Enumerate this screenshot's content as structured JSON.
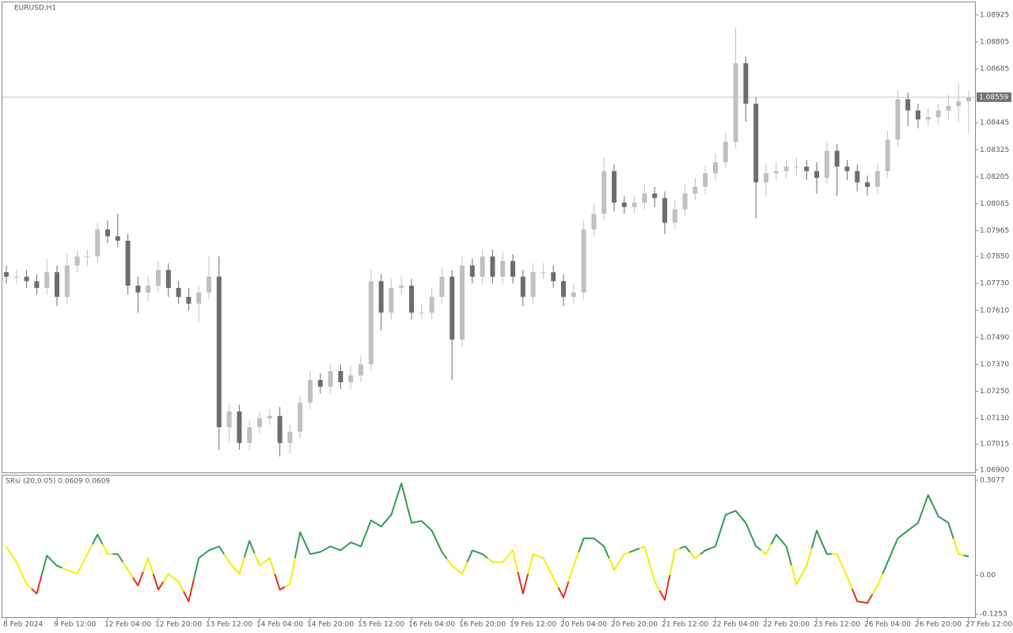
{
  "chart_data": [
    {
      "type": "candlestick",
      "title": "EURUSD,H1",
      "categories": [
        "8 Feb 2024",
        null,
        null,
        null,
        null,
        "9 Feb 12:00",
        null,
        null,
        null,
        null,
        "12 Feb 04:00",
        null,
        null,
        null,
        null,
        "12 Feb 20:00",
        null,
        null,
        null,
        null,
        "13 Feb 12:00",
        null,
        null,
        null,
        null,
        "14 Feb 04:00",
        null,
        null,
        null,
        null,
        "14 Feb 20:00",
        null,
        null,
        null,
        null,
        "15 Feb 12:00",
        null,
        null,
        null,
        null,
        "16 Feb 04:00",
        null,
        null,
        null,
        null,
        "16 Feb 20:00",
        null,
        null,
        null,
        null,
        "19 Feb 12:00",
        null,
        null,
        null,
        null,
        "20 Feb 04:00",
        null,
        null,
        null,
        null,
        "20 Feb 20:00",
        null,
        null,
        null,
        null,
        "21 Feb 12:00",
        null,
        null,
        null,
        null,
        "22 Feb 04:00",
        null,
        null,
        null,
        null,
        "22 Feb 20:00",
        null,
        null,
        null,
        null,
        "23 Feb 12:00",
        null,
        null,
        null,
        null,
        "26 Feb 04:00",
        null,
        null,
        null,
        null,
        "26 Feb 20:00",
        null,
        null,
        null,
        null,
        "27 Feb 12:00"
      ],
      "open": [
        1.0778,
        1.0776,
        1.0776,
        1.0774,
        1.0771,
        1.0778,
        1.0767,
        1.0781,
        1.0785,
        1.0785,
        1.0797,
        1.0794,
        1.0792,
        1.0772,
        1.0769,
        1.0772,
        1.0779,
        1.0771,
        1.0767,
        1.0764,
        1.0769,
        1.0776,
        1.0709,
        1.0716,
        1.0702,
        1.0709,
        1.0713,
        1.0714,
        1.0702,
        1.0707,
        1.072,
        1.073,
        1.0727,
        1.0734,
        1.0729,
        1.0732,
        1.0737,
        1.0774,
        1.076,
        1.0771,
        1.0772,
        1.076,
        1.076,
        1.0767,
        1.0776,
        1.0748,
        1.0781,
        1.0776,
        1.0785,
        1.0776,
        1.0783,
        1.0776,
        1.0767,
        1.0778,
        1.0778,
        1.0774,
        1.0767,
        1.0769,
        1.0797,
        1.0804,
        1.0823,
        1.0809,
        1.0807,
        1.0809,
        1.0813,
        1.0811,
        1.08,
        1.0806,
        1.0813,
        1.0816,
        1.0822,
        1.0827,
        1.0836,
        1.0871,
        1.0853,
        1.0818,
        1.0822,
        1.0823,
        1.0825,
        1.0825,
        1.0823,
        1.082,
        1.0832,
        1.0825,
        1.0823,
        1.0818,
        1.0816,
        1.0823,
        1.0837,
        1.0855,
        1.085,
        1.0846,
        1.0847,
        1.085,
        1.0852,
        1.0854
      ],
      "high": [
        1.0781,
        1.0779,
        1.0779,
        1.0777,
        1.0784,
        1.0781,
        1.0786,
        1.0788,
        1.0788,
        1.08,
        1.0801,
        1.0804,
        1.0795,
        1.0776,
        1.0776,
        1.0783,
        1.0782,
        1.0774,
        1.0771,
        1.0772,
        1.0785,
        1.0785,
        1.0719,
        1.0719,
        1.0712,
        1.0716,
        1.0717,
        1.0718,
        1.071,
        1.0723,
        1.0734,
        1.0733,
        1.0737,
        1.0737,
        1.0736,
        1.0741,
        1.0779,
        1.0777,
        1.0775,
        1.0776,
        1.0775,
        1.0764,
        1.0771,
        1.078,
        1.0779,
        1.0785,
        1.0784,
        1.0788,
        1.0788,
        1.0787,
        1.0786,
        1.0779,
        1.0782,
        1.0782,
        1.0781,
        1.0777,
        1.0773,
        1.0801,
        1.0808,
        1.0829,
        1.0826,
        1.0812,
        1.0812,
        1.0817,
        1.0816,
        1.0814,
        1.081,
        1.0817,
        1.082,
        1.0825,
        1.0831,
        1.084,
        1.0887,
        1.0874,
        1.0856,
        1.0826,
        1.0827,
        1.0828,
        1.0829,
        1.0828,
        1.0827,
        1.0836,
        1.0835,
        1.0828,
        1.0826,
        1.0821,
        1.0826,
        1.0841,
        1.0859,
        1.0858,
        1.0853,
        1.0851,
        1.0853,
        1.0857,
        1.0862,
        1.0859
      ],
      "low": [
        1.0773,
        1.0773,
        1.0771,
        1.0768,
        1.0768,
        1.0763,
        1.0764,
        1.0778,
        1.0781,
        1.0782,
        1.0791,
        1.0789,
        1.0768,
        1.076,
        1.0765,
        1.0769,
        1.0767,
        1.0764,
        1.0761,
        1.0756,
        1.0766,
        1.0699,
        1.0702,
        1.0699,
        1.0699,
        1.0706,
        1.071,
        1.0696,
        1.0697,
        1.0704,
        1.0717,
        1.0724,
        1.0724,
        1.0726,
        1.0726,
        1.0729,
        1.0734,
        1.0752,
        1.0757,
        1.0768,
        1.0757,
        1.0757,
        1.0757,
        1.0764,
        1.073,
        1.0745,
        1.0773,
        1.0773,
        1.0773,
        1.0773,
        1.0773,
        1.0763,
        1.0764,
        1.0775,
        1.0771,
        1.0763,
        1.0764,
        1.0766,
        1.0794,
        1.0801,
        1.0805,
        1.0804,
        1.0804,
        1.0806,
        1.0807,
        1.0795,
        1.0797,
        1.0803,
        1.081,
        1.0813,
        1.0819,
        1.0824,
        1.0833,
        1.0845,
        1.0802,
        1.0812,
        1.0819,
        1.082,
        1.0821,
        1.0819,
        1.0813,
        1.0817,
        1.0812,
        1.0819,
        1.0814,
        1.0812,
        1.0813,
        1.082,
        1.0834,
        1.0843,
        1.0842,
        1.0843,
        1.0844,
        1.0846,
        1.0845,
        1.084
      ],
      "close": [
        1.0776,
        1.0776,
        1.0774,
        1.0771,
        1.0778,
        1.0767,
        1.0781,
        1.0785,
        1.0785,
        1.0797,
        1.0794,
        1.0792,
        1.0772,
        1.0769,
        1.0772,
        1.0779,
        1.0771,
        1.0767,
        1.0764,
        1.0769,
        1.0776,
        1.0709,
        1.0716,
        1.0702,
        1.0709,
        1.0713,
        1.0714,
        1.0702,
        1.0707,
        1.072,
        1.073,
        1.0727,
        1.0734,
        1.0729,
        1.0732,
        1.0737,
        1.0774,
        1.076,
        1.0771,
        1.0772,
        1.076,
        1.076,
        1.0767,
        1.0776,
        1.0748,
        1.0781,
        1.0776,
        1.0785,
        1.0776,
        1.0783,
        1.0776,
        1.0767,
        1.0778,
        1.0778,
        1.0774,
        1.0767,
        1.0769,
        1.0797,
        1.0804,
        1.0823,
        1.0809,
        1.0807,
        1.0809,
        1.0813,
        1.0811,
        1.08,
        1.0806,
        1.0813,
        1.0816,
        1.0822,
        1.0827,
        1.0836,
        1.0871,
        1.0853,
        1.0818,
        1.0822,
        1.0823,
        1.0825,
        1.0825,
        1.0823,
        1.082,
        1.0832,
        1.0825,
        1.0823,
        1.0818,
        1.0816,
        1.0823,
        1.0837,
        1.0855,
        1.085,
        1.0846,
        1.0847,
        1.085,
        1.0852,
        1.0854,
        1.08559
      ],
      "up_color": "#c0c0c0",
      "down_color": "#6d6d6d",
      "current_price": 1.08559,
      "ylim": [
        1.06889,
        1.08981
      ],
      "yticks": [
        1.08925,
        1.08805,
        1.08685,
        1.08445,
        1.08325,
        1.08205,
        1.08085,
        1.07965,
        {
          "value": 1.0785,
          "label": "1.07850"
        },
        {
          "value": 1.0773,
          "label": "1.07730"
        },
        {
          "value": 1.0761,
          "label": "1.07610"
        },
        {
          "value": 1.0749,
          "label": "1.07490"
        },
        {
          "value": 1.0737,
          "label": "1.07370"
        },
        {
          "value": 1.0725,
          "label": "1.07250"
        },
        {
          "value": 1.0713,
          "label": "1.07130"
        },
        1.07015,
        {
          "value": 1.069,
          "label": "1.06900"
        }
      ]
    },
    {
      "type": "line",
      "title": "SRsi (20,0.05) 0.0609 0.0609",
      "values": [
        0.094,
        0.043,
        -0.028,
        -0.059,
        0.064,
        0.031,
        0.018,
        0.005,
        0.069,
        0.132,
        0.069,
        0.069,
        0.018,
        -0.033,
        0.056,
        -0.046,
        0.005,
        -0.02,
        -0.084,
        0.056,
        0.081,
        0.094,
        0.043,
        0.005,
        0.112,
        0.031,
        0.056,
        -0.046,
        -0.028,
        0.14,
        0.069,
        0.076,
        0.094,
        0.081,
        0.107,
        0.094,
        0.178,
        0.158,
        0.196,
        0.298,
        0.17,
        0.176,
        0.145,
        0.076,
        0.031,
        0.005,
        0.081,
        0.069,
        0.043,
        0.043,
        0.081,
        -0.059,
        0.069,
        0.056,
        -0.008,
        -0.071,
        0.031,
        0.12,
        0.12,
        0.094,
        0.018,
        0.069,
        0.081,
        0.094,
        -0.02,
        -0.079,
        0.081,
        0.094,
        0.056,
        0.081,
        0.094,
        0.196,
        0.209,
        0.17,
        0.094,
        0.069,
        0.132,
        0.094,
        -0.028,
        0.031,
        0.145,
        0.069,
        0.069,
        -0.003,
        -0.084,
        -0.089,
        -0.033,
        0.043,
        0.12,
        0.145,
        0.17,
        0.26,
        0.191,
        0.17,
        0.069,
        0.061
      ],
      "point_colors": [
        "#f0f000",
        "#f0f000",
        "#f0f000",
        "#e0301a",
        "#2e9b55",
        "#2e9b55",
        "#f0f000",
        "#f0f000",
        "#f0f000",
        "#2e9b55",
        "#f0f000",
        "#2e9b55",
        "#f0f000",
        "#e0301a",
        "#f0f000",
        "#e0301a",
        "#f0f000",
        "#f0f000",
        "#e0301a",
        "#2e9b55",
        "#2e9b55",
        "#2e9b55",
        "#f0f000",
        "#f0f000",
        "#2e9b55",
        "#f0f000",
        "#f0f000",
        "#e0301a",
        "#f0f000",
        "#2e9b55",
        "#2e9b55",
        "#2e9b55",
        "#2e9b55",
        "#2e9b55",
        "#2e9b55",
        "#2e9b55",
        "#2e9b55",
        "#2e9b55",
        "#2e9b55",
        "#2e9b55",
        "#2e9b55",
        "#2e9b55",
        "#2e9b55",
        "#2e9b55",
        "#f0f000",
        "#f0f000",
        "#2e9b55",
        "#2e9b55",
        "#f0f000",
        "#f0f000",
        "#f0f000",
        "#e0301a",
        "#f0f000",
        "#f0f000",
        "#f0f000",
        "#e0301a",
        "#f0f000",
        "#2e9b55",
        "#2e9b55",
        "#2e9b55",
        "#f0f000",
        "#f0f000",
        "#2e9b55",
        "#f0f000",
        "#f0f000",
        "#e0301a",
        "#f0f000",
        "#2e9b55",
        "#f0f000",
        "#2e9b55",
        "#2e9b55",
        "#2e9b55",
        "#2e9b55",
        "#2e9b55",
        "#2e9b55",
        "#f0f000",
        "#2e9b55",
        "#2e9b55",
        "#f0f000",
        "#f0f000",
        "#2e9b55",
        "#2e9b55",
        "#f0f000",
        "#f0f000",
        "#e0301a",
        "#e0301a",
        "#f0f000",
        "#2e9b55",
        "#2e9b55",
        "#2e9b55",
        "#2e9b55",
        "#2e9b55",
        "#2e9b55",
        "#2e9b55",
        "#f0f000",
        "#2e9b55"
      ],
      "ylim": [
        -0.135,
        0.323
      ],
      "yticks": [
        0.3077,
        {
          "value": 0,
          "label": "0.00"
        },
        -0.1253
      ]
    }
  ]
}
